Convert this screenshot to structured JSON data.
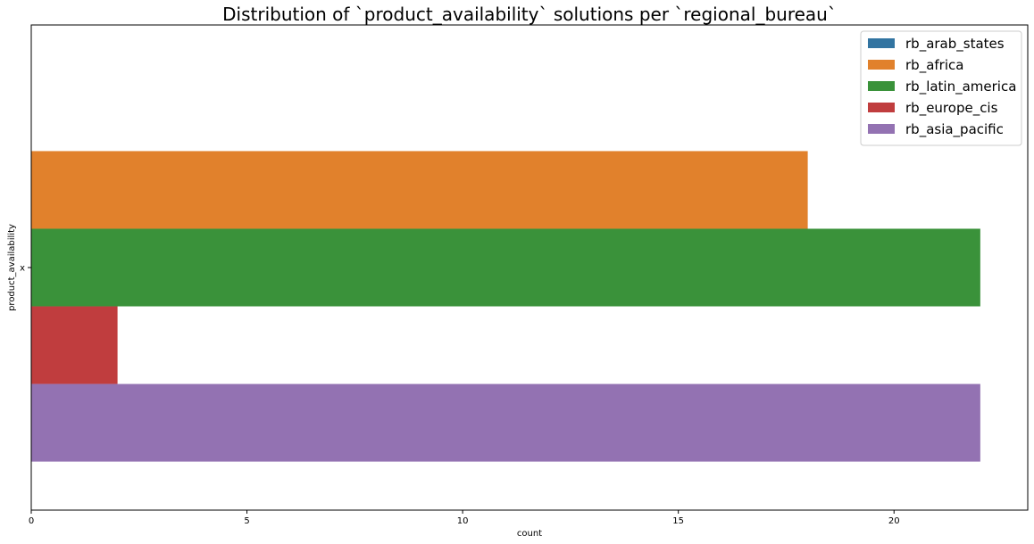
{
  "chart_data": {
    "type": "bar",
    "orientation": "horizontal",
    "title": "Distribution of `product_availability` solutions per `regional_bureau`",
    "xlabel": "count",
    "ylabel": "product_availability",
    "categories": [
      "x"
    ],
    "xlim": [
      0,
      23.1
    ],
    "xticks": [
      0,
      5,
      10,
      15,
      20
    ],
    "grid": false,
    "legend_position": "top-right",
    "series": [
      {
        "name": "rb_arab_states",
        "color": "#3274a1",
        "values": [
          0
        ]
      },
      {
        "name": "rb_africa",
        "color": "#e1812c",
        "values": [
          18
        ]
      },
      {
        "name": "rb_latin_america",
        "color": "#3a923a",
        "values": [
          22
        ]
      },
      {
        "name": "rb_europe_cis",
        "color": "#c03d3e",
        "values": [
          2
        ]
      },
      {
        "name": "rb_asia_pacific",
        "color": "#9372b2",
        "values": [
          22
        ]
      }
    ]
  }
}
